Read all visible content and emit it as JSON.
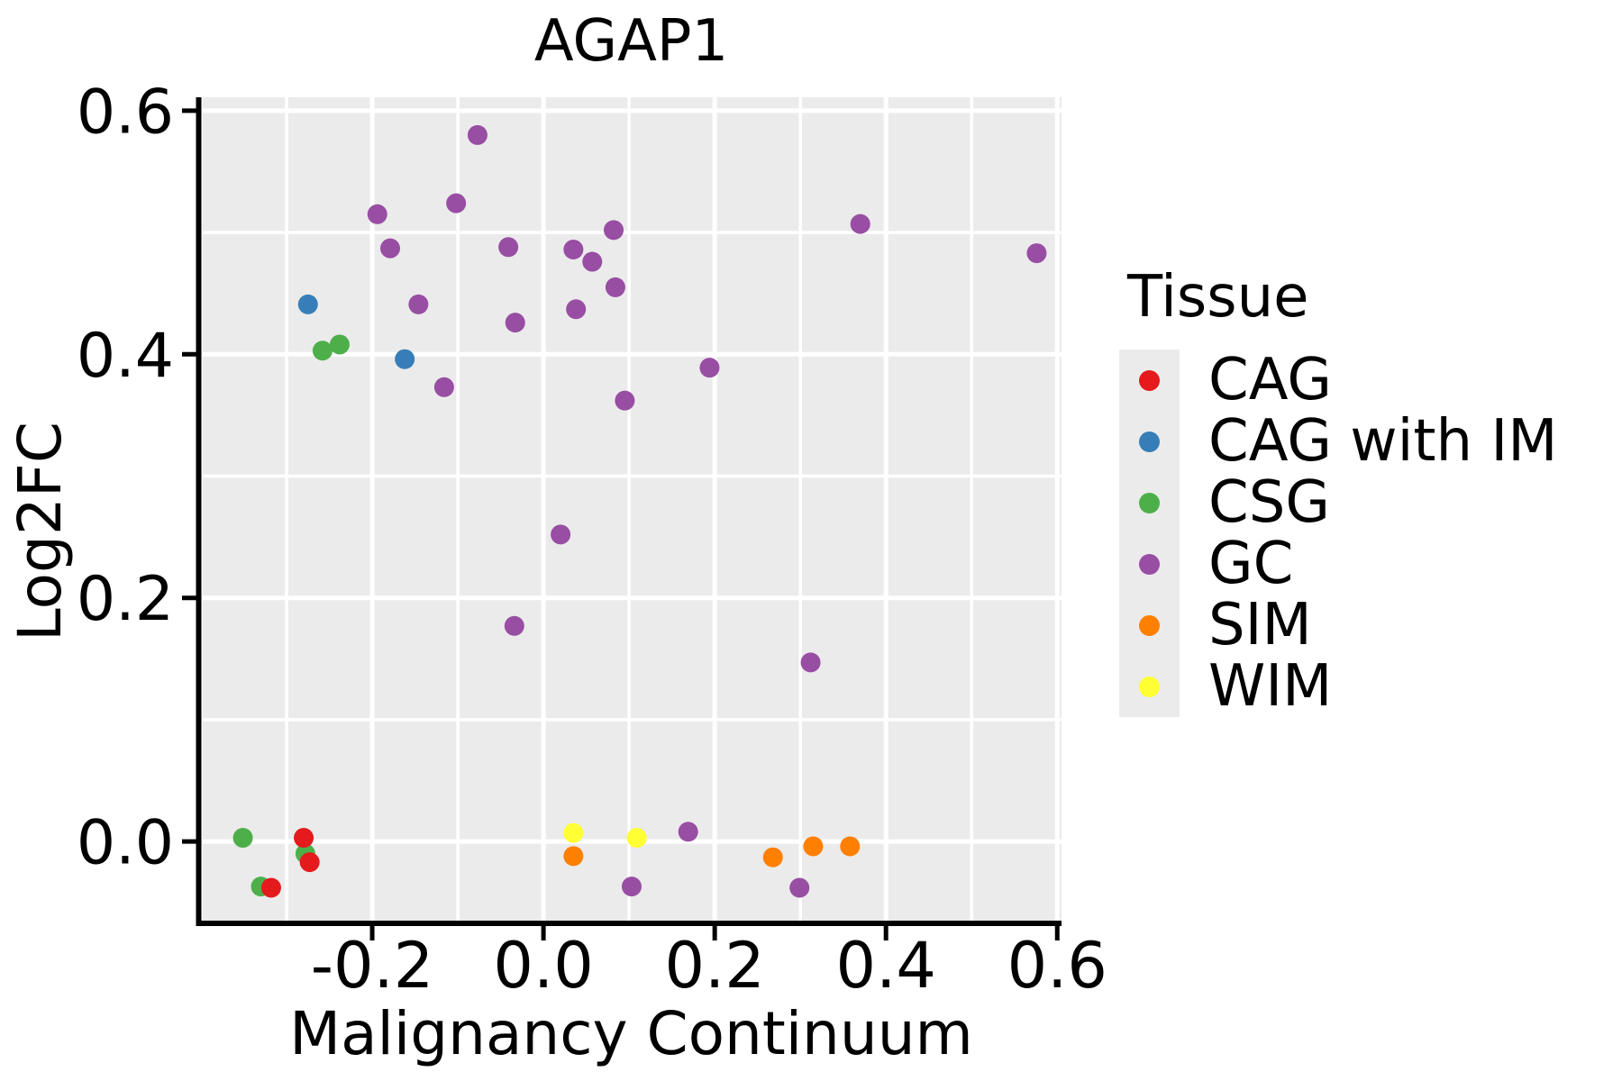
{
  "chart_data": {
    "type": "scatter",
    "title": "AGAP1",
    "xlabel": "Malignancy Continuum",
    "ylabel": "Log2FC",
    "xlim": [
      -0.4,
      0.605
    ],
    "ylim": [
      -0.065,
      0.611
    ],
    "x_ticks": {
      "values": [
        -0.2,
        0.0,
        0.2,
        0.4,
        0.6
      ],
      "labels": [
        "-0.2",
        "0.0",
        "0.2",
        "0.4",
        "0.6"
      ]
    },
    "y_ticks": {
      "values": [
        0.0,
        0.2,
        0.4,
        0.6
      ],
      "labels": [
        "0.0",
        "0.2",
        "0.4",
        "0.6"
      ]
    },
    "grid": {
      "step": 0.1,
      "color": "#FFFFFF",
      "panel_bg": "#EBEBEB",
      "minor_on": true
    },
    "legend_title": "Tissue",
    "legend_position": "right",
    "point_radius_px": 11,
    "draw_order": [
      "CSG",
      "SIM",
      "WIM",
      "GC",
      "CAG",
      "CAG with IM"
    ],
    "series": [
      {
        "name": "CAG",
        "color": "#E41A1C",
        "points": [
          [
            -0.28,
            0.003
          ],
          [
            -0.273,
            -0.017
          ],
          [
            -0.318,
            -0.038
          ]
        ]
      },
      {
        "name": "CAG with IM",
        "color": "#377EB8",
        "points": [
          [
            -0.275,
            0.441
          ],
          [
            -0.162,
            0.396
          ]
        ]
      },
      {
        "name": "CSG",
        "color": "#4DAF4A",
        "points": [
          [
            -0.258,
            0.403
          ],
          [
            -0.238,
            0.408
          ],
          [
            -0.351,
            0.003
          ],
          [
            -0.278,
            -0.01
          ],
          [
            -0.33,
            -0.037
          ]
        ]
      },
      {
        "name": "GC",
        "color": "#984EA3",
        "points": [
          [
            -0.077,
            0.58
          ],
          [
            -0.102,
            0.524
          ],
          [
            -0.194,
            0.515
          ],
          [
            -0.179,
            0.487
          ],
          [
            -0.041,
            0.488
          ],
          [
            0.035,
            0.486
          ],
          [
            0.082,
            0.502
          ],
          [
            0.057,
            0.476
          ],
          [
            0.084,
            0.455
          ],
          [
            -0.146,
            0.441
          ],
          [
            0.038,
            0.437
          ],
          [
            -0.033,
            0.426
          ],
          [
            0.37,
            0.507
          ],
          [
            0.576,
            0.483
          ],
          [
            0.194,
            0.389
          ],
          [
            -0.116,
            0.373
          ],
          [
            0.095,
            0.362
          ],
          [
            0.02,
            0.252
          ],
          [
            -0.034,
            0.177
          ],
          [
            0.312,
            0.147
          ],
          [
            0.169,
            0.008
          ],
          [
            0.103,
            -0.037
          ],
          [
            0.299,
            -0.038
          ]
        ]
      },
      {
        "name": "SIM",
        "color": "#FF7F00",
        "points": [
          [
            0.035,
            -0.012
          ],
          [
            0.268,
            -0.013
          ],
          [
            0.315,
            -0.004
          ],
          [
            0.358,
            -0.004
          ]
        ]
      },
      {
        "name": "WIM",
        "color": "#FFFF33",
        "points": [
          [
            0.035,
            0.007
          ],
          [
            0.109,
            0.003
          ]
        ]
      }
    ]
  }
}
